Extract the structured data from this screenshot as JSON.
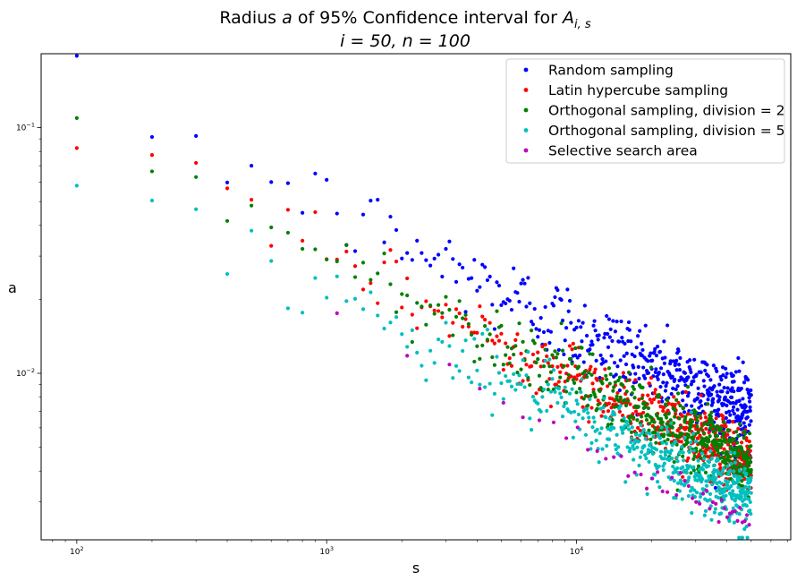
{
  "chart_data": {
    "type": "scatter",
    "title_line1": "Radius",
    "title_line1_var": "a",
    "title_line1_mid": "of 95% Confidence interval for",
    "title_line1_sym": "A",
    "title_line1_sub": "i, s",
    "title_line2": "i = 50, n = 100",
    "xlabel": "s",
    "ylabel": "a",
    "x_scale": "log",
    "y_scale": "log",
    "xlim": [
      72,
      72000
    ],
    "ylim": [
      0.0021,
      0.2
    ],
    "x_ticks": [
      {
        "value": 100,
        "base": "10",
        "exp": "2"
      },
      {
        "value": 1000,
        "base": "10",
        "exp": "3"
      },
      {
        "value": 10000,
        "base": "10",
        "exp": "4"
      }
    ],
    "y_ticks": [
      {
        "value": 0.01,
        "base": "10",
        "exp": "−2"
      },
      {
        "value": 0.1,
        "base": "10",
        "exp": "−1"
      }
    ],
    "grid": false,
    "legend_position": "top-right",
    "x_range": [
      100,
      50000
    ],
    "x_step": 100,
    "series": [
      {
        "name": "Random sampling",
        "color": "#0000ff",
        "coef": 1.5,
        "exp": -0.5,
        "noise": 0.2
      },
      {
        "name": "Latin hypercube sampling",
        "color": "#ff0000",
        "coef": 0.95,
        "exp": -0.5,
        "noise": 0.15
      },
      {
        "name": "Orthogonal sampling, division = 2",
        "color": "#008000",
        "coef": 0.95,
        "exp": -0.5,
        "noise": 0.15
      },
      {
        "name": "Orthogonal sampling, division = 5",
        "color": "#00bfbf",
        "coef": 0.68,
        "exp": -0.5,
        "noise": 0.16
      },
      {
        "name": "Selective search area",
        "color": "#bf00bf",
        "coef": 0.55,
        "exp": -0.5,
        "noise": 0.07,
        "stride": 10,
        "start_x": 1000
      }
    ]
  }
}
